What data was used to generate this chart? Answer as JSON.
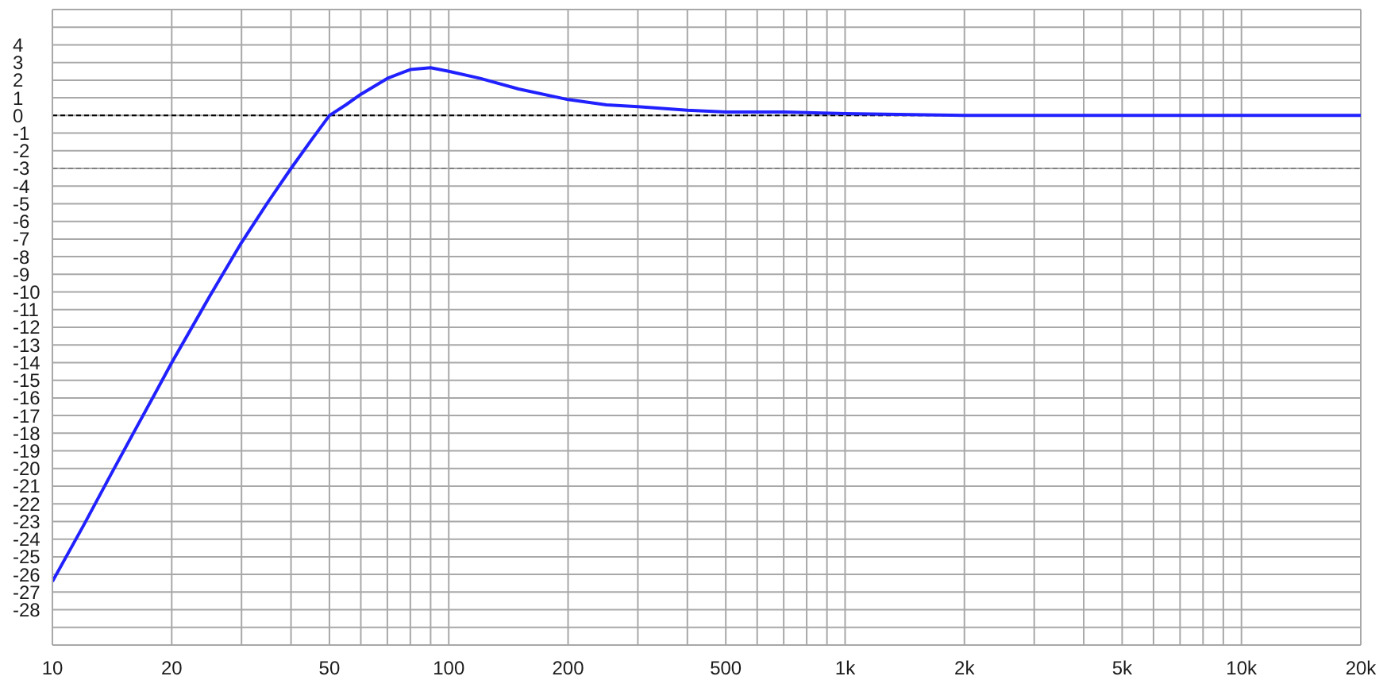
{
  "chart_data": {
    "type": "line",
    "x": [
      10,
      12,
      14,
      16,
      18,
      20,
      25,
      30,
      35,
      40,
      45,
      50,
      55,
      60,
      70,
      80,
      90,
      100,
      120,
      150,
      200,
      250,
      300,
      400,
      500,
      700,
      1000,
      2000,
      5000,
      10000,
      20000
    ],
    "series": [
      {
        "color": "#2121ff",
        "values": [
          -26.4,
          -23.2,
          -20.4,
          -18.0,
          -15.9,
          -14.0,
          -10.2,
          -7.2,
          -4.9,
          -3.0,
          -1.4,
          0.0,
          0.6,
          1.2,
          2.1,
          2.6,
          2.7,
          2.5,
          2.1,
          1.5,
          0.9,
          0.6,
          0.5,
          0.3,
          0.2,
          0.2,
          0.1,
          0.0,
          0.0,
          0.0,
          0.0
        ]
      }
    ],
    "log": "x",
    "xlim": [
      10,
      20000
    ],
    "xticks": [
      10,
      20,
      {
        "value": 30,
        "label": null
      },
      {
        "value": 40,
        "label": null
      },
      50,
      {
        "value": 60,
        "label": null
      },
      {
        "value": 70,
        "label": null
      },
      {
        "value": 80,
        "label": null
      },
      {
        "value": 90,
        "label": null
      },
      100,
      200,
      {
        "value": 300,
        "label": null
      },
      {
        "value": 400,
        "label": null
      },
      500,
      {
        "value": 600,
        "label": null
      },
      {
        "value": 700,
        "label": null
      },
      {
        "value": 800,
        "label": null
      },
      {
        "value": 900,
        "label": null
      },
      {
        "value": 1000,
        "label": "1k"
      },
      {
        "value": 2000,
        "label": "2k"
      },
      {
        "value": 3000,
        "label": null
      },
      {
        "value": 4000,
        "label": null
      },
      {
        "value": 5000,
        "label": "5k"
      },
      {
        "value": 6000,
        "label": null
      },
      {
        "value": 7000,
        "label": null
      },
      {
        "value": 8000,
        "label": null
      },
      {
        "value": 9000,
        "label": null
      },
      {
        "value": 10000,
        "label": "10k"
      },
      {
        "value": 20000,
        "label": "20k"
      }
    ],
    "ylim": [
      -30,
      6
    ],
    "yticks": [
      {
        "value": 6,
        "label": null
      },
      {
        "value": 5,
        "label": null
      },
      4,
      3,
      2,
      1,
      0,
      -1,
      -2,
      -3,
      -4,
      -5,
      -6,
      -7,
      -8,
      -9,
      -10,
      -11,
      -12,
      -13,
      -14,
      -15,
      -16,
      -17,
      -18,
      -19,
      -20,
      -21,
      -22,
      -23,
      -24,
      -25,
      -26,
      -27,
      -28,
      {
        "value": -29,
        "label": null
      },
      {
        "value": -30,
        "label": null
      }
    ],
    "grid": true,
    "ref_lines": [
      {
        "axis": "y",
        "value": 0,
        "color": "#000000",
        "line_style": "dashed"
      },
      {
        "axis": "y",
        "value": -3,
        "color": "#808080",
        "line_style": "dashed"
      }
    ]
  }
}
